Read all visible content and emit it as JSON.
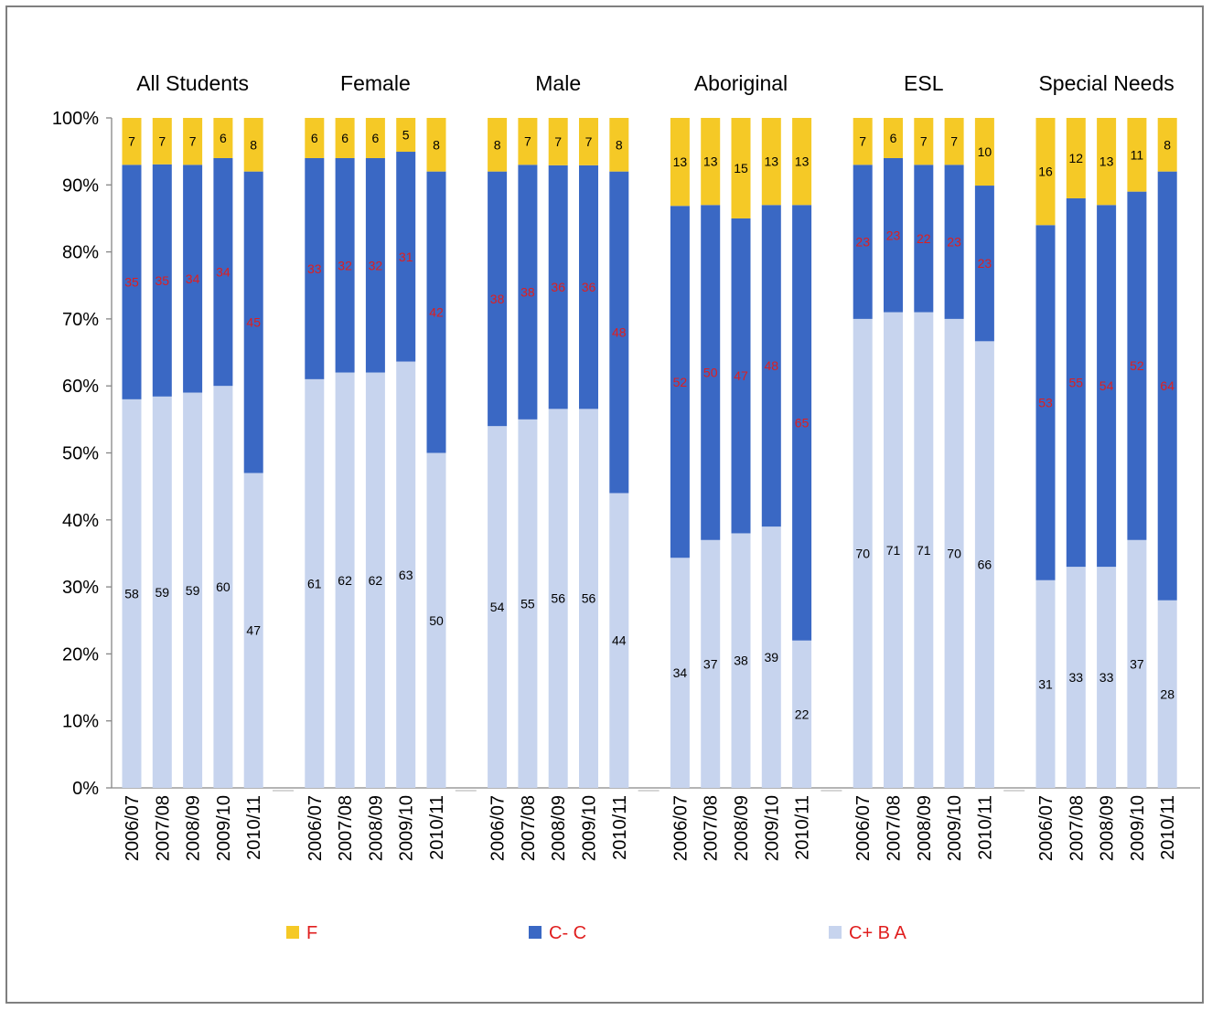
{
  "chart_data": {
    "type": "bar",
    "stacked": true,
    "percent_axis": true,
    "ylim": [
      0,
      100
    ],
    "y_ticks": [
      "0%",
      "10%",
      "20%",
      "30%",
      "40%",
      "50%",
      "60%",
      "70%",
      "80%",
      "90%",
      "100%"
    ],
    "groups": [
      {
        "title": "All Students",
        "categories": [
          "2006/07",
          "2007/08",
          "2008/09",
          "2009/10",
          "2010/11"
        ],
        "series": {
          "cba": [
            58,
            59,
            59,
            60,
            47
          ],
          "cc": [
            35,
            35,
            34,
            34,
            45
          ],
          "f": [
            7,
            7,
            7,
            6,
            8
          ]
        }
      },
      {
        "title": "Female",
        "categories": [
          "2006/07",
          "2007/08",
          "2008/09",
          "2009/10",
          "2010/11"
        ],
        "series": {
          "cba": [
            61,
            62,
            62,
            63,
            50
          ],
          "cc": [
            33,
            32,
            32,
            31,
            42
          ],
          "f": [
            6,
            6,
            6,
            5,
            8
          ]
        }
      },
      {
        "title": "Male",
        "categories": [
          "2006/07",
          "2007/08",
          "2008/09",
          "2009/10",
          "2010/11"
        ],
        "series": {
          "cba": [
            54,
            55,
            56,
            56,
            44
          ],
          "cc": [
            38,
            38,
            36,
            36,
            48
          ],
          "f": [
            8,
            7,
            7,
            7,
            8
          ]
        }
      },
      {
        "title": "Aboriginal",
        "categories": [
          "2006/07",
          "2007/08",
          "2008/09",
          "2009/10",
          "2010/11"
        ],
        "series": {
          "cba": [
            34,
            37,
            38,
            39,
            22
          ],
          "cc": [
            52,
            50,
            47,
            48,
            65
          ],
          "f": [
            13,
            13,
            15,
            13,
            13
          ]
        }
      },
      {
        "title": "ESL",
        "categories": [
          "2006/07",
          "2007/08",
          "2008/09",
          "2009/10",
          "2010/11"
        ],
        "series": {
          "cba": [
            70,
            71,
            71,
            70,
            66
          ],
          "cc": [
            23,
            23,
            22,
            23,
            23
          ],
          "f": [
            7,
            6,
            7,
            7,
            10
          ]
        }
      },
      {
        "title": "Special Needs",
        "categories": [
          "2006/07",
          "2007/08",
          "2008/09",
          "2009/10",
          "2010/11"
        ],
        "series": {
          "cba": [
            31,
            33,
            33,
            37,
            28
          ],
          "cc": [
            53,
            55,
            54,
            52,
            64
          ],
          "f": [
            16,
            12,
            13,
            11,
            8
          ]
        }
      }
    ],
    "legend": {
      "placement": "bottom",
      "items": [
        {
          "key": "f",
          "name": "F"
        },
        {
          "key": "cc",
          "name": "C- C"
        },
        {
          "key": "cba",
          "name": "C+ B A"
        }
      ]
    },
    "colors": {
      "f": "#F5C926",
      "cc": "#3A68C4",
      "cba": "#C7D4EE",
      "cc_label": "#E01E1E",
      "label": "#000000",
      "legend_text": "#E01E1E",
      "axis": "#868686"
    }
  }
}
